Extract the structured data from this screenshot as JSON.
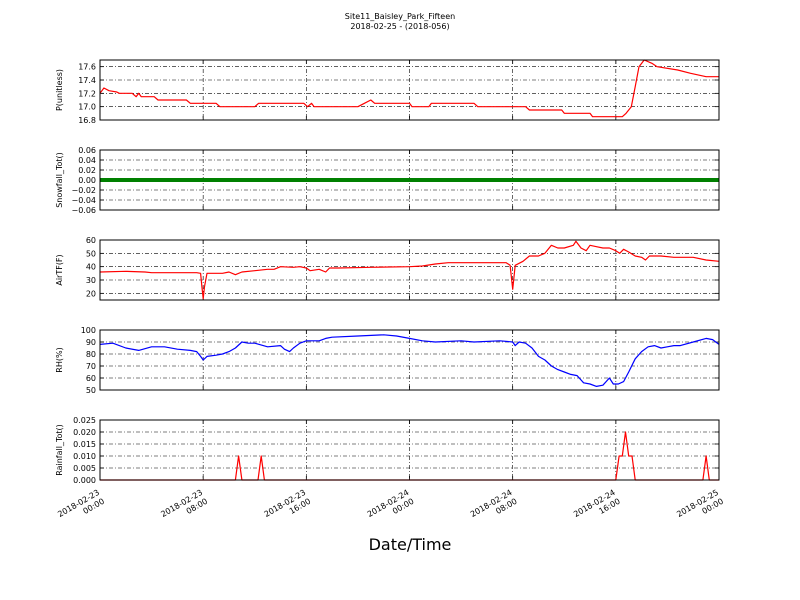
{
  "figure": {
    "title_line1": "Site11_Baisley_Park_Fifteen",
    "title_line2": "2018-02-25 - (2018-056)",
    "xlabel": "Date/Time"
  },
  "chart_data": {
    "type": "line",
    "x_range": [
      "2018-02-23 00:00",
      "2018-02-25 00:00"
    ],
    "x_ticks": [
      "2018-02-23 00:00",
      "2018-02-23 08:00",
      "2018-02-23 16:00",
      "2018-02-24 00:00",
      "2018-02-24 08:00",
      "2018-02-24 16:00",
      "2018-02-25 00:00"
    ],
    "x_tick_labels": [
      [
        "2018-02-23",
        "00:00"
      ],
      [
        "2018-02-23",
        "08:00"
      ],
      [
        "2018-02-23",
        "16:00"
      ],
      [
        "2018-02-24",
        "00:00"
      ],
      [
        "2018-02-24",
        "08:00"
      ],
      [
        "2018-02-24",
        "16:00"
      ],
      [
        "2018-02-25",
        "00:00"
      ]
    ],
    "grid": true,
    "panels": [
      {
        "ylabel": "P(unitless)",
        "color": "#ff0000",
        "ylim": [
          16.8,
          17.7
        ],
        "yticks": [
          16.8,
          17.0,
          17.2,
          17.4,
          17.6
        ],
        "ytick_labels": [
          "16.8",
          "17.0",
          "17.2",
          "17.4",
          "17.6"
        ],
        "series": [
          [
            0,
            17.2
          ],
          [
            0.3,
            17.28
          ],
          [
            0.7,
            17.24
          ],
          [
            1.3,
            17.22
          ],
          [
            1.5,
            17.2
          ],
          [
            2.5,
            17.2
          ],
          [
            2.8,
            17.15
          ],
          [
            3.0,
            17.2
          ],
          [
            3.2,
            17.15
          ],
          [
            4.2,
            17.15
          ],
          [
            4.5,
            17.1
          ],
          [
            6.7,
            17.1
          ],
          [
            7.0,
            17.05
          ],
          [
            9.0,
            17.05
          ],
          [
            9.3,
            17.0
          ],
          [
            12.0,
            17.0
          ],
          [
            12.3,
            17.05
          ],
          [
            15.8,
            17.05
          ],
          [
            16.1,
            17.0
          ],
          [
            16.4,
            17.05
          ],
          [
            16.6,
            17.0
          ],
          [
            20.0,
            17.0
          ],
          [
            20.5,
            17.05
          ],
          [
            21.0,
            17.1
          ],
          [
            21.3,
            17.05
          ],
          [
            24.0,
            17.05
          ],
          [
            24.2,
            17.0
          ],
          [
            25.5,
            17.0
          ],
          [
            25.7,
            17.05
          ],
          [
            29.0,
            17.05
          ],
          [
            29.3,
            17.0
          ],
          [
            33.0,
            17.0
          ],
          [
            33.3,
            16.95
          ],
          [
            35.8,
            16.95
          ],
          [
            36.0,
            16.9
          ],
          [
            38.0,
            16.9
          ],
          [
            38.2,
            16.85
          ],
          [
            40.5,
            16.85
          ],
          [
            40.8,
            16.9
          ],
          [
            41.2,
            17.0
          ],
          [
            41.5,
            17.3
          ],
          [
            41.8,
            17.6
          ],
          [
            42.2,
            17.7
          ],
          [
            42.8,
            17.65
          ],
          [
            43.2,
            17.6
          ],
          [
            44.8,
            17.55
          ],
          [
            45.8,
            17.5
          ],
          [
            47.0,
            17.45
          ],
          [
            48.0,
            17.45
          ]
        ]
      },
      {
        "ylabel": "Snowfall_Tot()",
        "color": "#008000",
        "ylim": [
          -0.06,
          0.06
        ],
        "yticks": [
          -0.06,
          -0.04,
          -0.02,
          0.0,
          0.02,
          0.04,
          0.06
        ],
        "ytick_labels": [
          "−0.06",
          "−0.04",
          "−0.02",
          "0.00",
          "0.02",
          "0.04",
          "0.06"
        ],
        "series": [
          [
            0,
            0.0
          ],
          [
            48,
            0.0
          ]
        ]
      },
      {
        "ylabel": "AirTF(F)",
        "color": "#ff0000",
        "ylim": [
          15,
          60
        ],
        "yticks": [
          20,
          30,
          40,
          50,
          60
        ],
        "ytick_labels": [
          "20",
          "30",
          "40",
          "50",
          "60"
        ],
        "series": [
          [
            0,
            36
          ],
          [
            2,
            36.5
          ],
          [
            3.5,
            36
          ],
          [
            4,
            35.5
          ],
          [
            7.5,
            35.5
          ],
          [
            7.8,
            35
          ],
          [
            7.9,
            25
          ],
          [
            8.0,
            16
          ],
          [
            8.1,
            25
          ],
          [
            8.3,
            35
          ],
          [
            9.5,
            35
          ],
          [
            10,
            36
          ],
          [
            10.5,
            34
          ],
          [
            11,
            36
          ],
          [
            12,
            37
          ],
          [
            13,
            38
          ],
          [
            13.5,
            38
          ],
          [
            14,
            40
          ],
          [
            15,
            39.5
          ],
          [
            15.5,
            40
          ],
          [
            16.0,
            39
          ],
          [
            16.3,
            37
          ],
          [
            17,
            38
          ],
          [
            17.5,
            36
          ],
          [
            17.8,
            39
          ],
          [
            18.5,
            39
          ],
          [
            21,
            39.5
          ],
          [
            24,
            40
          ],
          [
            25,
            40.5
          ],
          [
            26,
            42
          ],
          [
            27,
            43
          ],
          [
            30,
            43
          ],
          [
            31.5,
            43
          ],
          [
            31.8,
            41
          ],
          [
            32.0,
            23
          ],
          [
            32.2,
            41
          ],
          [
            32.8,
            44
          ],
          [
            33.3,
            48
          ],
          [
            34.0,
            48
          ],
          [
            34.5,
            50
          ],
          [
            35.0,
            56
          ],
          [
            35.5,
            54
          ],
          [
            36.0,
            54
          ],
          [
            36.7,
            56
          ],
          [
            36.9,
            59
          ],
          [
            37.3,
            54
          ],
          [
            37.7,
            52
          ],
          [
            38.0,
            56
          ],
          [
            38.5,
            55
          ],
          [
            39,
            54
          ],
          [
            39.5,
            54
          ],
          [
            40,
            52
          ],
          [
            40.3,
            50
          ],
          [
            40.6,
            53
          ],
          [
            41,
            51
          ],
          [
            41.5,
            48
          ],
          [
            42.0,
            47
          ],
          [
            42.3,
            45
          ],
          [
            42.6,
            48
          ],
          [
            43.5,
            48
          ],
          [
            44.5,
            47
          ],
          [
            46,
            47
          ],
          [
            47,
            45
          ],
          [
            48,
            44
          ]
        ]
      },
      {
        "ylabel": "RH(%)",
        "color": "#0000ff",
        "ylim": [
          50,
          100
        ],
        "yticks": [
          50,
          60,
          70,
          80,
          90,
          100
        ],
        "ytick_labels": [
          "50",
          "60",
          "70",
          "80",
          "90",
          "100"
        ],
        "series": [
          [
            0,
            88
          ],
          [
            1,
            89
          ],
          [
            2,
            85
          ],
          [
            3,
            83
          ],
          [
            4,
            86
          ],
          [
            5,
            86
          ],
          [
            6,
            84
          ],
          [
            7,
            83
          ],
          [
            7.5,
            82
          ],
          [
            7.8,
            78
          ],
          [
            8.0,
            75
          ],
          [
            8.3,
            78
          ],
          [
            9,
            79
          ],
          [
            9.5,
            80
          ],
          [
            10,
            82
          ],
          [
            10.5,
            85
          ],
          [
            11,
            90
          ],
          [
            11.5,
            89
          ],
          [
            12,
            89
          ],
          [
            13,
            86
          ],
          [
            14,
            87
          ],
          [
            14.3,
            84
          ],
          [
            14.7,
            82
          ],
          [
            15,
            85
          ],
          [
            15.5,
            89
          ],
          [
            16,
            91
          ],
          [
            17,
            91
          ],
          [
            17.5,
            93
          ],
          [
            18,
            94
          ],
          [
            20,
            95
          ],
          [
            22,
            96
          ],
          [
            23,
            95
          ],
          [
            24,
            93
          ],
          [
            25,
            91
          ],
          [
            26,
            90
          ],
          [
            28,
            91
          ],
          [
            29,
            90
          ],
          [
            31,
            91
          ],
          [
            32,
            90
          ],
          [
            32.2,
            87
          ],
          [
            32.5,
            90
          ],
          [
            33,
            89
          ],
          [
            33.5,
            85
          ],
          [
            34,
            78
          ],
          [
            34.5,
            75
          ],
          [
            35,
            70
          ],
          [
            35.5,
            67
          ],
          [
            36,
            65
          ],
          [
            36.5,
            63
          ],
          [
            37,
            62
          ],
          [
            37.5,
            56
          ],
          [
            38,
            55
          ],
          [
            38.5,
            53
          ],
          [
            39,
            54
          ],
          [
            39.5,
            60
          ],
          [
            39.8,
            55
          ],
          [
            40.2,
            55
          ],
          [
            40.6,
            57
          ],
          [
            41,
            65
          ],
          [
            41.5,
            76
          ],
          [
            42,
            82
          ],
          [
            42.5,
            86
          ],
          [
            43,
            87
          ],
          [
            43.5,
            85
          ],
          [
            44,
            86
          ],
          [
            44.5,
            87
          ],
          [
            45,
            87
          ],
          [
            46,
            90
          ],
          [
            47,
            93
          ],
          [
            47.5,
            92
          ],
          [
            48,
            88
          ]
        ]
      },
      {
        "ylabel": "Rainfall_Tot()",
        "color": "#ff0000",
        "ylim": [
          0.0,
          0.025
        ],
        "yticks": [
          0.0,
          0.005,
          0.01,
          0.015,
          0.02,
          0.025
        ],
        "ytick_labels": [
          "0.000",
          "0.005",
          "0.010",
          "0.015",
          "0.020",
          "0.025"
        ],
        "series": [
          [
            0,
            0
          ],
          [
            10.5,
            0
          ],
          [
            10.75,
            0.01
          ],
          [
            11.0,
            0
          ],
          [
            12.25,
            0
          ],
          [
            12.5,
            0.01
          ],
          [
            12.75,
            0
          ],
          [
            40.0,
            0
          ],
          [
            40.25,
            0.01
          ],
          [
            40.5,
            0.01
          ],
          [
            40.75,
            0.02
          ],
          [
            41.0,
            0.01
          ],
          [
            41.25,
            0.01
          ],
          [
            41.5,
            0
          ],
          [
            46.75,
            0
          ],
          [
            47.0,
            0.01
          ],
          [
            47.25,
            0
          ],
          [
            48,
            0
          ]
        ]
      }
    ]
  }
}
